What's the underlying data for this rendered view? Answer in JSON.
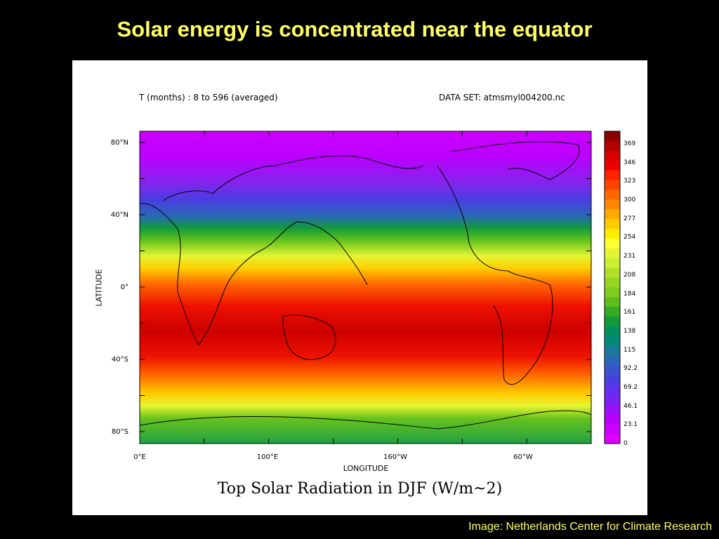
{
  "slide": {
    "title": "Solar energy is concentrated near the equator",
    "credit": "Image: Netherlands Center for Climate Research"
  },
  "map": {
    "header_left": "T (months) : 8 to 596 (averaged)",
    "header_right": "DATA SET: atmsmyl004200.nc",
    "title": "Top Solar Radiation in DJF (W/m~2)",
    "x_axis_title": "LONGITUDE",
    "y_axis_title": "LATITUDE",
    "lat_labels": [
      "80°N",
      "40°N",
      "0°",
      "40°S",
      "80°S"
    ],
    "lon_labels": [
      "0°E",
      "100°E",
      "160°W",
      "60°W"
    ],
    "colorbar": {
      "labels": [
        "369",
        "346",
        "323",
        "300",
        "277",
        "254",
        "231",
        "208",
        "184",
        "161",
        "138",
        "115",
        "92.2",
        "69.2",
        "46.1",
        "23.1",
        "0"
      ],
      "colors": [
        "#8c0000",
        "#b40000",
        "#d80000",
        "#ee0000",
        "#ff2200",
        "#ff4400",
        "#ff6600",
        "#ff8800",
        "#ffaa00",
        "#ffcc00",
        "#ffee00",
        "#ffff33",
        "#e5f533",
        "#ccee33",
        "#b2e02a",
        "#99d624",
        "#7fcc1e",
        "#5fbe1e",
        "#33aa22",
        "#119a3a",
        "#009060",
        "#008a78",
        "#1a7a9a",
        "#2a66b8",
        "#3a52cc",
        "#4a3ee0",
        "#6030ee",
        "#7a22f4",
        "#9a10fa",
        "#b800ff",
        "#cc00ff",
        "#dd00ff"
      ]
    }
  }
}
